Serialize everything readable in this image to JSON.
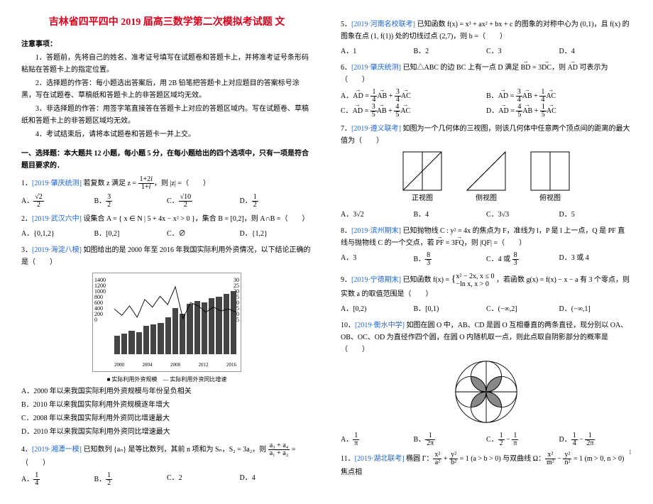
{
  "title": "吉林省四平四中 2019 届高三数学第二次模拟考试题 文",
  "notice_header": "注意事项：",
  "notices": [
    "1．答题前，先将自己的姓名、准考证号填写在试题卷和答题卡上，并将准考证号条形码粘贴在答题卡上的指定位置。",
    "2．选择题的作答：每小题选出答案后，用 2B 铅笔把答题卡上对应题目的答案标号涂黑，写在试题卷、草稿纸和答题卡上的非答题区域均无效。",
    "3．非选择题的作答：用签字笔直接答在答题卡上对应的答题区域内。写在试题卷、草稿纸和答题卡上的非答题区域均无效。",
    "4．考试结束后，请将本试题卷和答题卡一并上交。"
  ],
  "part1_header": "一、选择题：本大题共 12 小题，每小题 5 分，在每小题给出的四个选项中，只有一项是符合题目要求的．",
  "q1": {
    "tag": "[2019·肇庆统测]",
    "text": "若复数 z 满足 z = ",
    "text2": "，则 |z| =（　　）",
    "opts": [
      "A．",
      "B．",
      "C．",
      "D．"
    ]
  },
  "q2": {
    "tag": "[2019·武汉六中]",
    "text": "设集合 A = { x ∈ N | 5 + 4x − x² > 0 }，集合 B = [0,2]，则 A∩B =（　　）",
    "opts": [
      "A．{0,1,2}",
      "B．[0,2]",
      "C．∅",
      "D．{1,2}"
    ]
  },
  "q3": {
    "tag": "[2019·海淀八模]",
    "text": "如图给出的是 2000 年至 2016 年我国实际利用外资情况，以下结论正确的是（　　）",
    "optsA": "A．2000 年以来我国实际利用外资规模与年份呈负相关",
    "optsB": "B．2010 年以来我国实际利用外资规模逐年增大",
    "optsC": "C．2008 年以来我国实际利用外资同比增速最大",
    "optsD": "D．2010 年以来我国实际利用外资同比增速最大"
  },
  "chart": {
    "bars": [
      25,
      28,
      32,
      30,
      38,
      40,
      42,
      50,
      62,
      55,
      68,
      72,
      70,
      76,
      78,
      82,
      85
    ],
    "yl_labels": [
      "1400",
      "1200",
      "1000",
      "800",
      "600",
      "400",
      "200",
      "0"
    ],
    "yr_labels": [
      "30",
      "25",
      "20",
      "15",
      "10",
      "5",
      "0",
      "-5"
    ],
    "xlabels": [
      "2000",
      "2004",
      "2008",
      "2012",
      "2016"
    ],
    "legend1": "■ 实际利用外资规模",
    "legend2": "— 实际利用外资同比增速",
    "line_points": "0,45 12,55 24,40 36,58 48,30 60,42 72,25 84,38 96,10 108,60 120,35 132,40 144,50 156,42 168,48 180,45 192,50"
  },
  "q4": {
    "tag": "[2019·湘潭一模]",
    "text": "已知数列 {aₙ} 是等比数列，其前 n 项和为 Sₙ，S₂ = 3a₂，则 ",
    "text2": " =（　　）",
    "opts": [
      "A．",
      "B．",
      "C．2",
      "D．4"
    ]
  },
  "q5": {
    "tag": "[2019·河南名校联考]",
    "text": "已知函数 f(x) = x³ + ax² + bx + c 的图象的对称中心为 (0,1)，且 f(x) 的图象在点 (1, f(1)) 处的切线过点 (2,7)，则 b =（　　）",
    "opts": [
      "A．1",
      "B．2",
      "C．3",
      "D．4"
    ]
  },
  "q6": {
    "tag": "[2019·肇庆统测]",
    "text_pre": "已知△ABC 的边 BC 上有一点 D 满足 ",
    "text_mid": "，则 ",
    "text_post": " 可表示为（　　）"
  },
  "q7": {
    "tag": "[2019·遵义联考]",
    "text": "如图为一个几何体的三视图，则该几何体中任意两个顶点间的距离的最大值为（　　）",
    "views": [
      "正视图",
      "侧视图",
      "俯视图"
    ],
    "opts": [
      "A．3√2",
      "B．4",
      "C．3√3",
      "D．5"
    ]
  },
  "q8": {
    "tag": "[2019·滨州期末]",
    "text_pre": "已知抛物线 C : y² = 4x 的焦点为 F，准线为 l，P 是 l 上一点，Q 是 PF 直线与抛物线 C 的一个交点，若 ",
    "text_post": "，则 |QF| =（　　）",
    "opts": [
      "A．3",
      "B．",
      "C．4 或 ",
      "D．3 或 4"
    ]
  },
  "q9": {
    "tag": "[2019·宁德期末]",
    "text_pre": "已知函数 f(x) = ",
    "text_post": "，若函数 g(x) = f(x) − x − a 有 3 个零点，则实数 a 的取值范围是（　　）",
    "opts": [
      "A．[0,2)",
      "B．[0,1)",
      "C．(−∞,2]",
      "D．(−∞,1]"
    ]
  },
  "q10": {
    "tag": "[2019·衡水中学]",
    "text": "如图在圆 O 中，AB、CD 是圆 O 互相垂直的两条直径，现分别以 OA、OB、OC、OD 为直径作四个圆，在圆 O 内随机取一点，则此点取自阴影部分的概率是（　　）",
    "opts": [
      "A．",
      "B．",
      "C．",
      "D．"
    ]
  },
  "q11": {
    "tag": "[2019·湖北联考]",
    "text_pre": "椭圆 Γ：",
    "text_mid": " = 1 (a > b > 0) 与双曲线 Ω：",
    "text_post": " = 1 (m > 0, n > 0) 焦点相"
  },
  "pageno": "1"
}
